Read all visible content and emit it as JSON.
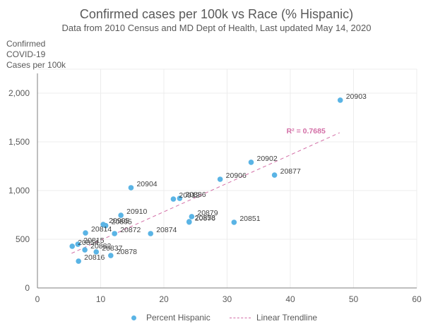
{
  "chart_data": {
    "type": "scatter",
    "title": "Confirmed cases per 100k vs Race (% Hispanic)",
    "subtitle": "Data from 2010 Census and MD Dept of Health, Last updated May 14, 2020",
    "xlabel": "",
    "ylabel": "Confirmed COVID-19 Cases per 100k",
    "ylabel_lines": [
      "Confirmed",
      "COVID-19",
      "Cases per 100k"
    ],
    "xlim": [
      0,
      60
    ],
    "ylim": [
      0,
      2250
    ],
    "x_ticks": [
      0,
      10,
      20,
      30,
      40,
      50,
      60
    ],
    "x_tick_labels": [
      "0",
      "10",
      "20",
      "30",
      "40",
      "50",
      "60"
    ],
    "y_ticks": [
      0,
      500,
      1000,
      1500,
      2000
    ],
    "y_tick_labels": [
      "0",
      "500",
      "1,000",
      "1,500",
      "2,000"
    ],
    "grid": true,
    "legend_position": "bottom",
    "series": [
      {
        "name": "Percent Hispanic",
        "color": "#5ab4e5",
        "points": [
          {
            "label": "20903",
            "x": 47.9,
            "y": 1928
          },
          {
            "label": "20902",
            "x": 33.8,
            "y": 1290
          },
          {
            "label": "20877",
            "x": 37.5,
            "y": 1159
          },
          {
            "label": "20906",
            "x": 28.9,
            "y": 1116
          },
          {
            "label": "20904",
            "x": 14.8,
            "y": 1029
          },
          {
            "label": "20912",
            "x": 21.5,
            "y": 913
          },
          {
            "label": "20886",
            "x": 22.5,
            "y": 920
          },
          {
            "label": "20910",
            "x": 13.2,
            "y": 746
          },
          {
            "label": "20879",
            "x": 24.4,
            "y": 732
          },
          {
            "label": "20853",
            "x": 24.0,
            "y": 681
          },
          {
            "label": "20876",
            "x": 24.0,
            "y": 676
          },
          {
            "label": "20851",
            "x": 31.1,
            "y": 674
          },
          {
            "label": "20905",
            "x": 10.4,
            "y": 652
          },
          {
            "label": "20895",
            "x": 10.8,
            "y": 640
          },
          {
            "label": "20814",
            "x": 7.6,
            "y": 565
          },
          {
            "label": "20872",
            "x": 12.2,
            "y": 558
          },
          {
            "label": "20874",
            "x": 17.9,
            "y": 558
          },
          {
            "label": "20854",
            "x": 5.5,
            "y": 428
          },
          {
            "label": "20815",
            "x": 6.4,
            "y": 449
          },
          {
            "label": "20882",
            "x": 7.5,
            "y": 391
          },
          {
            "label": "20837",
            "x": 9.3,
            "y": 370
          },
          {
            "label": "20878",
            "x": 11.6,
            "y": 333
          },
          {
            "label": "20816",
            "x": 6.5,
            "y": 275
          }
        ]
      }
    ],
    "trendline": {
      "name": "Linear Trendline",
      "color": "#d36ea6",
      "style": "dashed",
      "slope": 29.2,
      "intercept": 198,
      "x_range": [
        5.4,
        47.8
      ],
      "r_squared_label": "R² = 0.7685"
    }
  }
}
